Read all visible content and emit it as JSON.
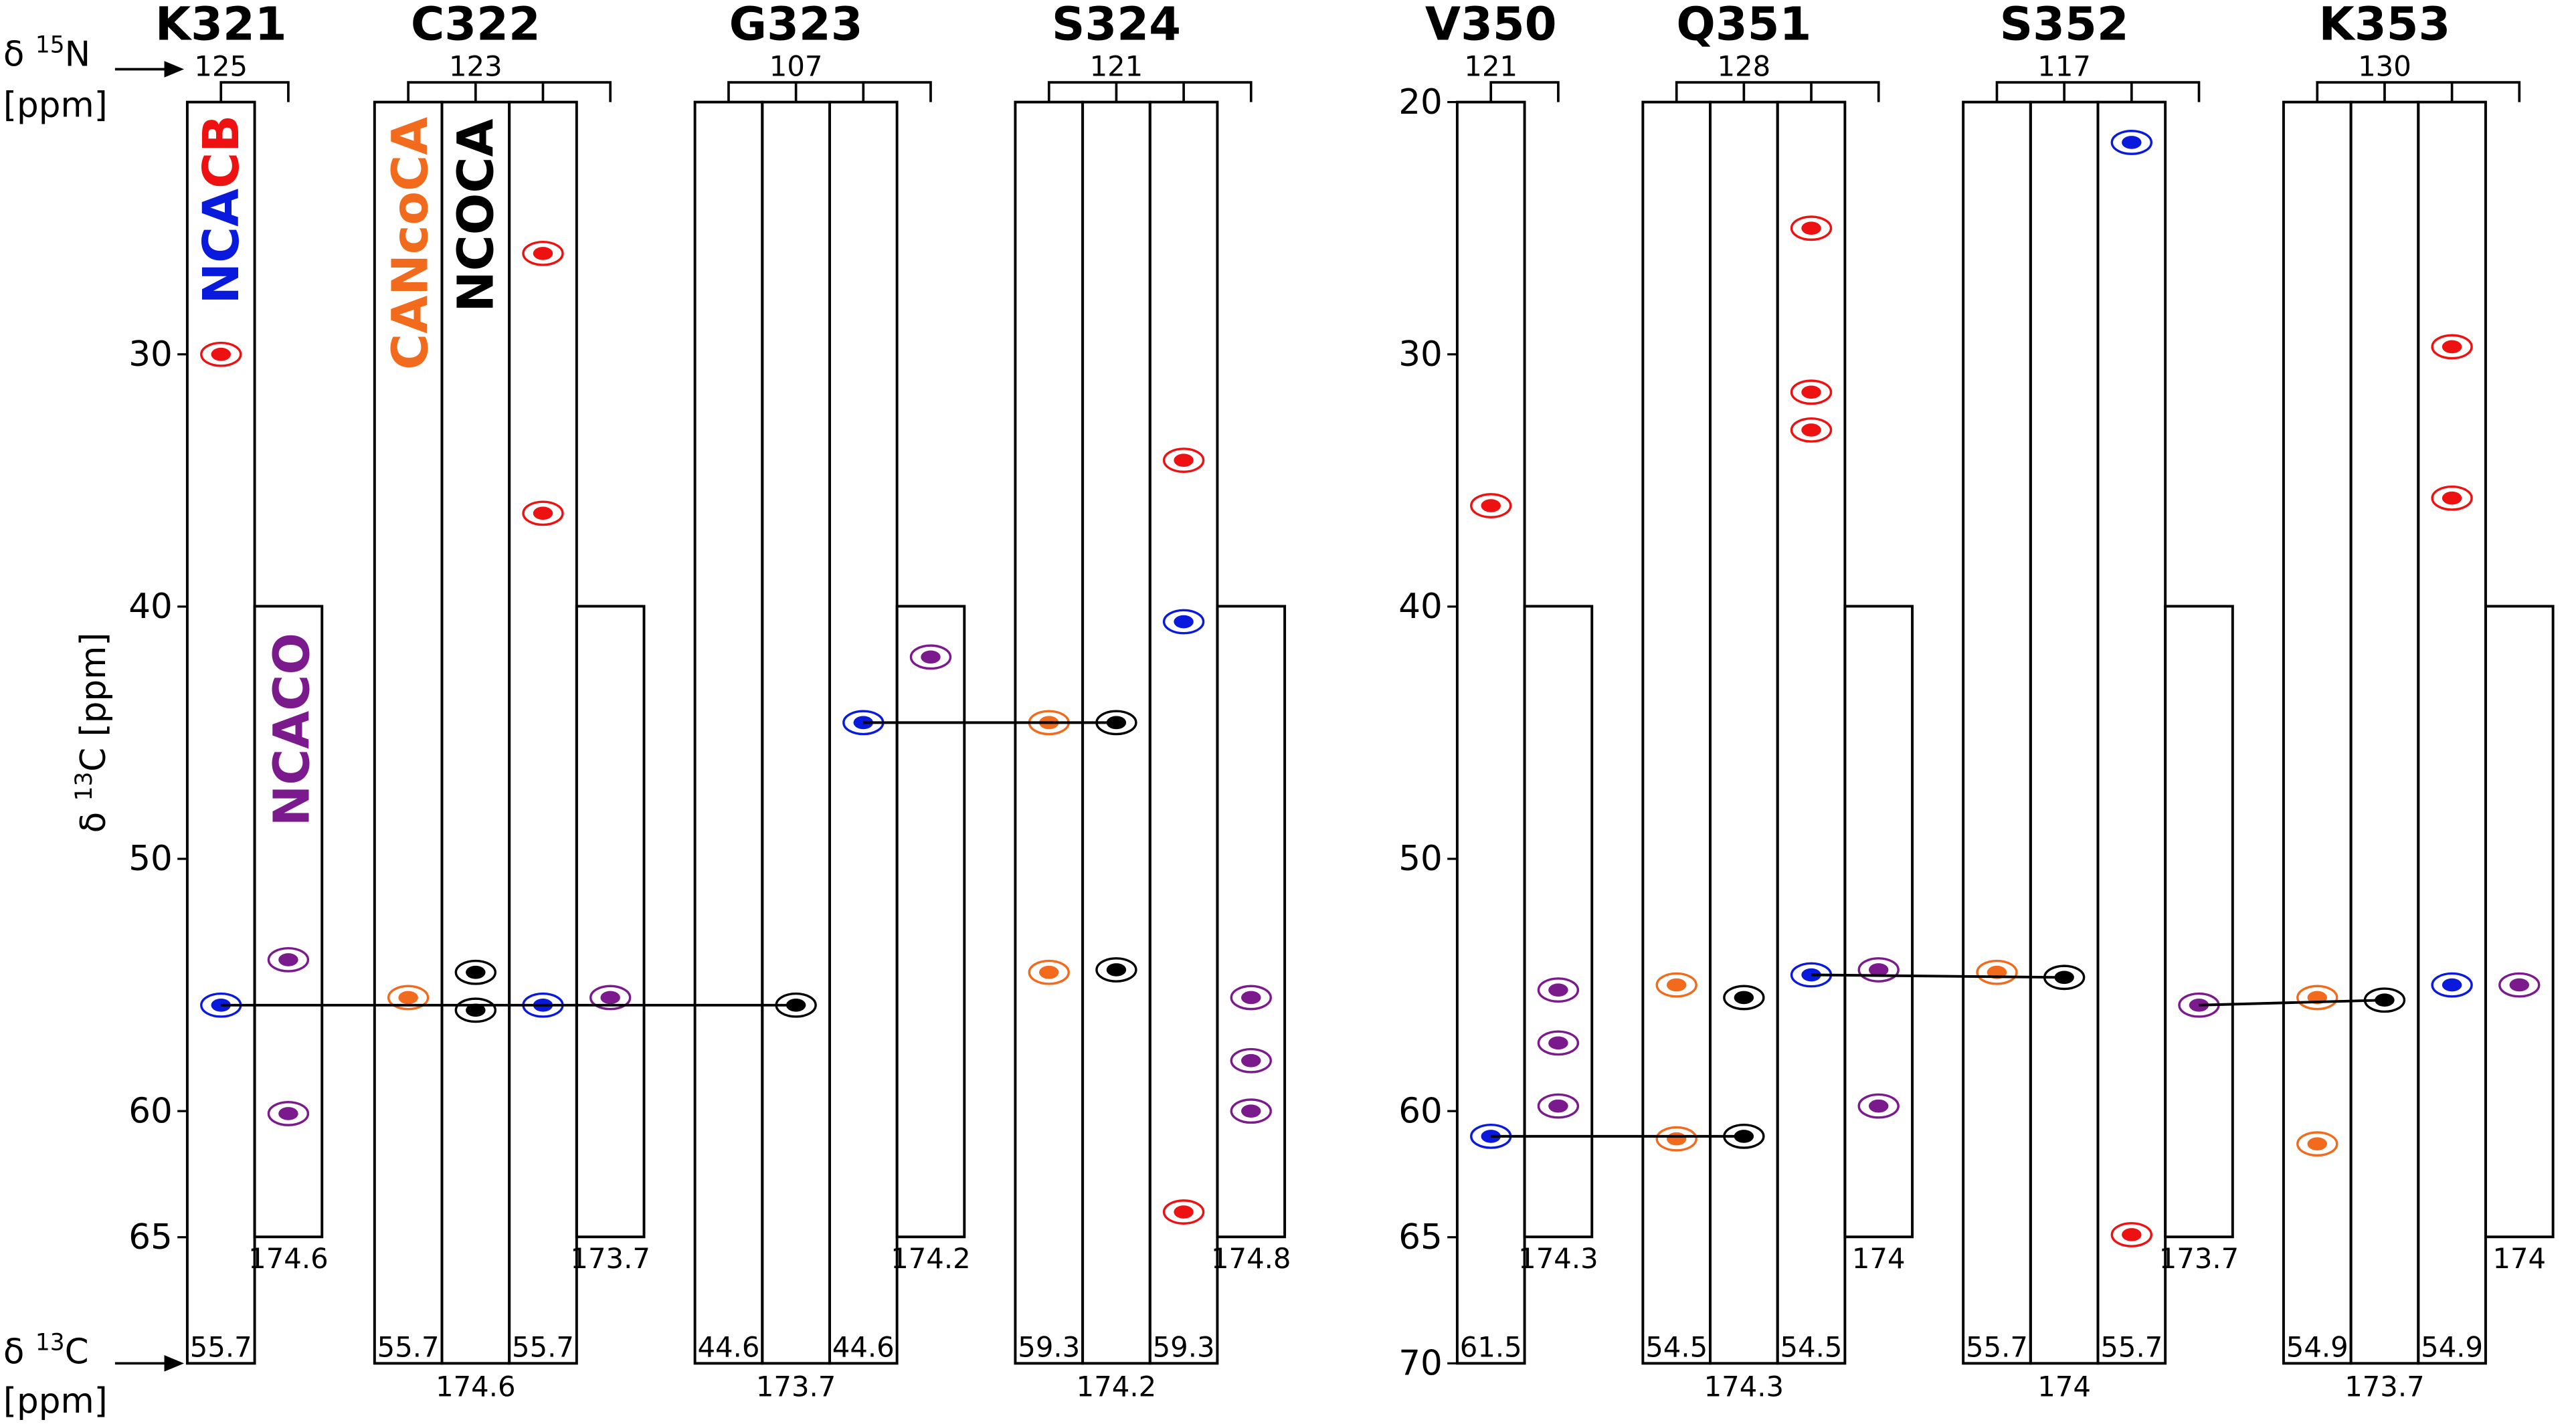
{
  "chart_data": {
    "type": "strip",
    "n_axis": {
      "prefix": "δ ",
      "sup": "15",
      "suffix": "N",
      "unit": "[ppm]"
    },
    "c_axis": {
      "prefix": "δ ",
      "sup": "13",
      "suffix": "C",
      "unit": "[ppm]"
    },
    "y_label": {
      "prefix": "δ ",
      "sup": "13",
      "suffix": "C [ppm]"
    },
    "ylim": [
      20,
      70
    ],
    "yticks_left": [
      30,
      40,
      50,
      60,
      65
    ],
    "yticks_right": [
      20,
      30,
      40,
      50,
      60,
      65,
      70
    ],
    "experiments": {
      "NCA": {
        "color": "#0a1adc"
      },
      "CB": {
        "color": "#ee1111"
      },
      "CANcoCA": {
        "color": "#f26b1d"
      },
      "NCOCA": {
        "color": "#000000"
      },
      "NCACO": {
        "color": "#7a1a8c"
      }
    },
    "residues": [
      {
        "name": "K321",
        "n15": 125,
        "ca_right": 55.7,
        "ncaco_co": 174.6,
        "peaks": {
          "CB": [
            30.0
          ],
          "NCA": [
            55.8
          ],
          "NCACO": [
            54.0,
            60.1
          ]
        }
      },
      {
        "name": "C322",
        "n15": 123,
        "ca_left": 55.7,
        "ca_right": 55.7,
        "co": 174.6,
        "ncaco_co": 173.7,
        "peaks": {
          "CANcoCA": [
            55.5
          ],
          "NCOCA": [
            54.5,
            56.0
          ],
          "NCA": [
            55.8
          ],
          "CB": [
            26.0,
            36.3
          ],
          "NCACO": [
            55.5
          ]
        }
      },
      {
        "name": "G323",
        "n15": 107,
        "ca_left": 44.6,
        "ca_right": 44.6,
        "co": 173.7,
        "ncaco_co": 174.2,
        "peaks": {
          "NCOCA": [
            55.8
          ],
          "NCA": [
            44.6
          ],
          "NCACO": [
            42.0
          ]
        }
      },
      {
        "name": "S324",
        "n15": 121,
        "ca_left": 59.3,
        "ca_right": 59.3,
        "co": 174.2,
        "ncaco_co": 174.8,
        "peaks": {
          "CANcoCA": [
            44.6,
            54.5
          ],
          "NCOCA": [
            44.6,
            54.4
          ],
          "NCA": [
            40.6
          ],
          "CB": [
            34.2,
            64.0
          ],
          "NCACO": [
            55.5,
            58.0,
            60.0
          ]
        }
      },
      {
        "name": "V350",
        "n15": 121,
        "ca_right": 61.5,
        "ncaco_co": 174.3,
        "peaks": {
          "NCA": [
            61.0
          ],
          "CB": [
            36.0
          ],
          "NCACO": [
            55.2,
            57.3,
            59.8
          ]
        }
      },
      {
        "name": "Q351",
        "n15": 128,
        "ca_left": 54.5,
        "ca_right": 54.5,
        "co": 174.3,
        "ncaco_co": 174.0,
        "peaks": {
          "CANcoCA": [
            55.0,
            61.1
          ],
          "NCOCA": [
            55.5,
            61.0
          ],
          "NCA": [
            54.6
          ],
          "CB": [
            25.0,
            31.5,
            33.0
          ],
          "NCACO": [
            54.4,
            59.8
          ]
        }
      },
      {
        "name": "S352",
        "n15": 117,
        "ca_left": 55.7,
        "ca_right": 55.7,
        "co": 174.0,
        "ncaco_co": 173.7,
        "peaks": {
          "CANcoCA": [
            54.5
          ],
          "NCOCA": [
            54.7
          ],
          "NCA": [
            21.6
          ],
          "CB": [
            64.9
          ],
          "NCACO": [
            55.8
          ]
        }
      },
      {
        "name": "K353",
        "n15": 130,
        "ca_left": 54.9,
        "ca_right": 54.9,
        "co": 173.7,
        "ncaco_co": 174.0,
        "peaks": {
          "CANcoCA": [
            55.5,
            61.3
          ],
          "NCOCA": [
            55.6
          ],
          "NCA": [
            55.0
          ],
          "CB": [
            29.7,
            35.7
          ],
          "NCACO": [
            55.0
          ]
        }
      }
    ]
  }
}
